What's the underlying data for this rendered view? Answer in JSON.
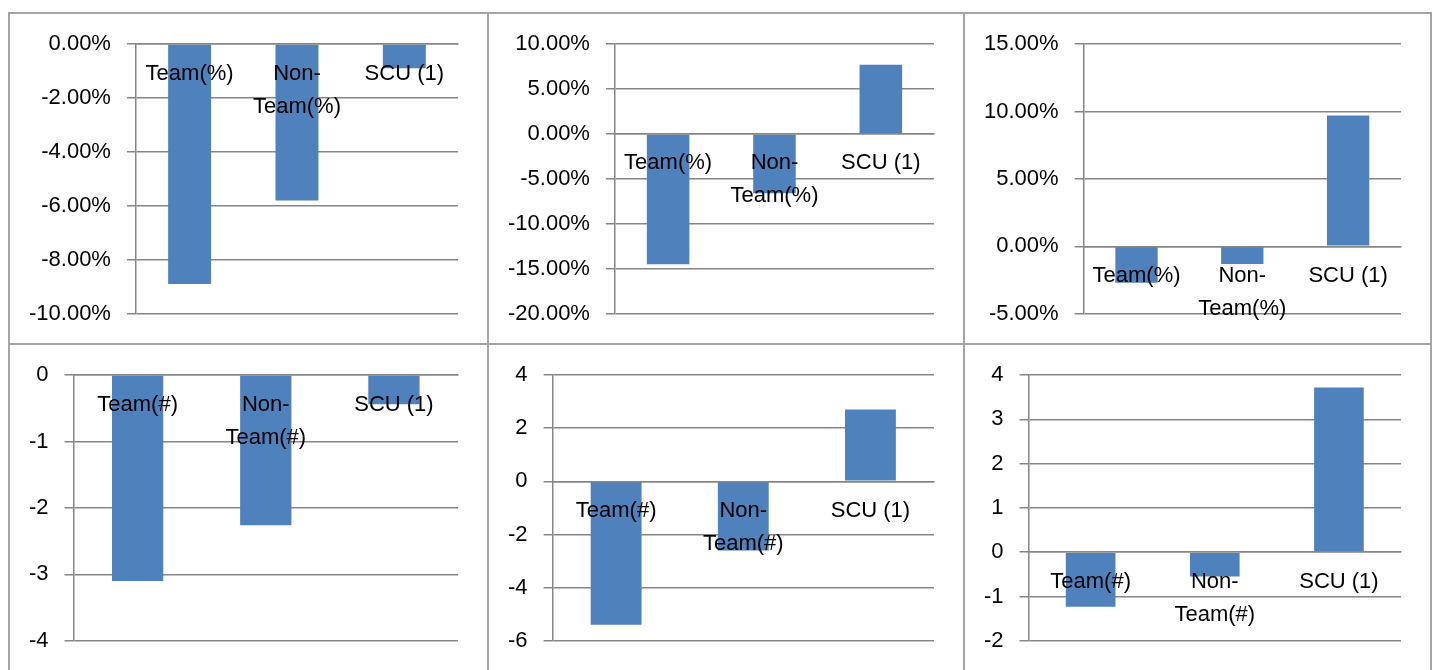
{
  "chart_data": [
    {
      "type": "bar",
      "categories": [
        "Team(%)",
        "Non-Team(%)",
        "SCU (1)"
      ],
      "values": [
        -8.9,
        -5.8,
        -0.9
      ],
      "color": "#4f81bd",
      "ylim": [
        -10,
        0
      ],
      "yticks": [
        {
          "value": -10,
          "label": "-10.00%"
        },
        {
          "value": -8,
          "label": "-8.00%"
        },
        {
          "value": -6,
          "label": "-6.00%"
        },
        {
          "value": -4,
          "label": "-4.00%"
        },
        {
          "value": -2,
          "label": "-2.00%"
        },
        {
          "value": 0,
          "label": "0.00%"
        }
      ],
      "grid": "y"
    },
    {
      "type": "bar",
      "categories": [
        "Team(%)",
        "Non-Team(%)",
        "SCU (1)"
      ],
      "values": [
        -14.5,
        -6.6,
        7.7
      ],
      "color": "#4f81bd",
      "ylim": [
        -20,
        10
      ],
      "yticks": [
        {
          "value": -20,
          "label": "-20.00%"
        },
        {
          "value": -15,
          "label": "-15.00%"
        },
        {
          "value": -10,
          "label": "-10.00%"
        },
        {
          "value": -5,
          "label": "-5.00%"
        },
        {
          "value": 0,
          "label": "0.00%"
        },
        {
          "value": 5,
          "label": "5.00%"
        },
        {
          "value": 10,
          "label": "10.00%"
        }
      ],
      "grid": "y"
    },
    {
      "type": "bar",
      "categories": [
        "Team(%)",
        "Non-Team(%)",
        "SCU (1)"
      ],
      "values": [
        -2.7,
        -1.3,
        9.7
      ],
      "color": "#4f81bd",
      "ylim": [
        -5,
        15
      ],
      "yticks": [
        {
          "value": -5,
          "label": "-5.00%"
        },
        {
          "value": 0,
          "label": "0.00%"
        },
        {
          "value": 5,
          "label": "5.00%"
        },
        {
          "value": 10,
          "label": "10.00%"
        },
        {
          "value": 15,
          "label": "15.00%"
        }
      ],
      "grid": "y"
    },
    {
      "type": "bar",
      "categories": [
        "Team(#)",
        "Non-Team(#)",
        "SCU (1)"
      ],
      "values": [
        -3.1,
        -2.26,
        -0.44
      ],
      "color": "#4f81bd",
      "ylim": [
        -4,
        0
      ],
      "yticks": [
        -4,
        -3,
        -2,
        -1,
        0
      ],
      "grid": "y"
    },
    {
      "type": "bar",
      "categories": [
        "Team(#)",
        "Non-Team(#)",
        "SCU (1)"
      ],
      "values": [
        -5.4,
        -2.6,
        2.7
      ],
      "color": "#4f81bd",
      "ylim": [
        -6,
        4
      ],
      "yticks": [
        -6,
        -4,
        -2,
        0,
        2,
        4
      ],
      "grid": "y"
    },
    {
      "type": "bar",
      "categories": [
        "Team(#)",
        "Non-Team(#)",
        "SCU (1)"
      ],
      "values": [
        -1.23,
        -0.55,
        3.72
      ],
      "color": "#4f81bd",
      "ylim": [
        -2,
        4
      ],
      "yticks": [
        -2,
        -1,
        0,
        1,
        2,
        3,
        4
      ],
      "grid": "y"
    }
  ]
}
